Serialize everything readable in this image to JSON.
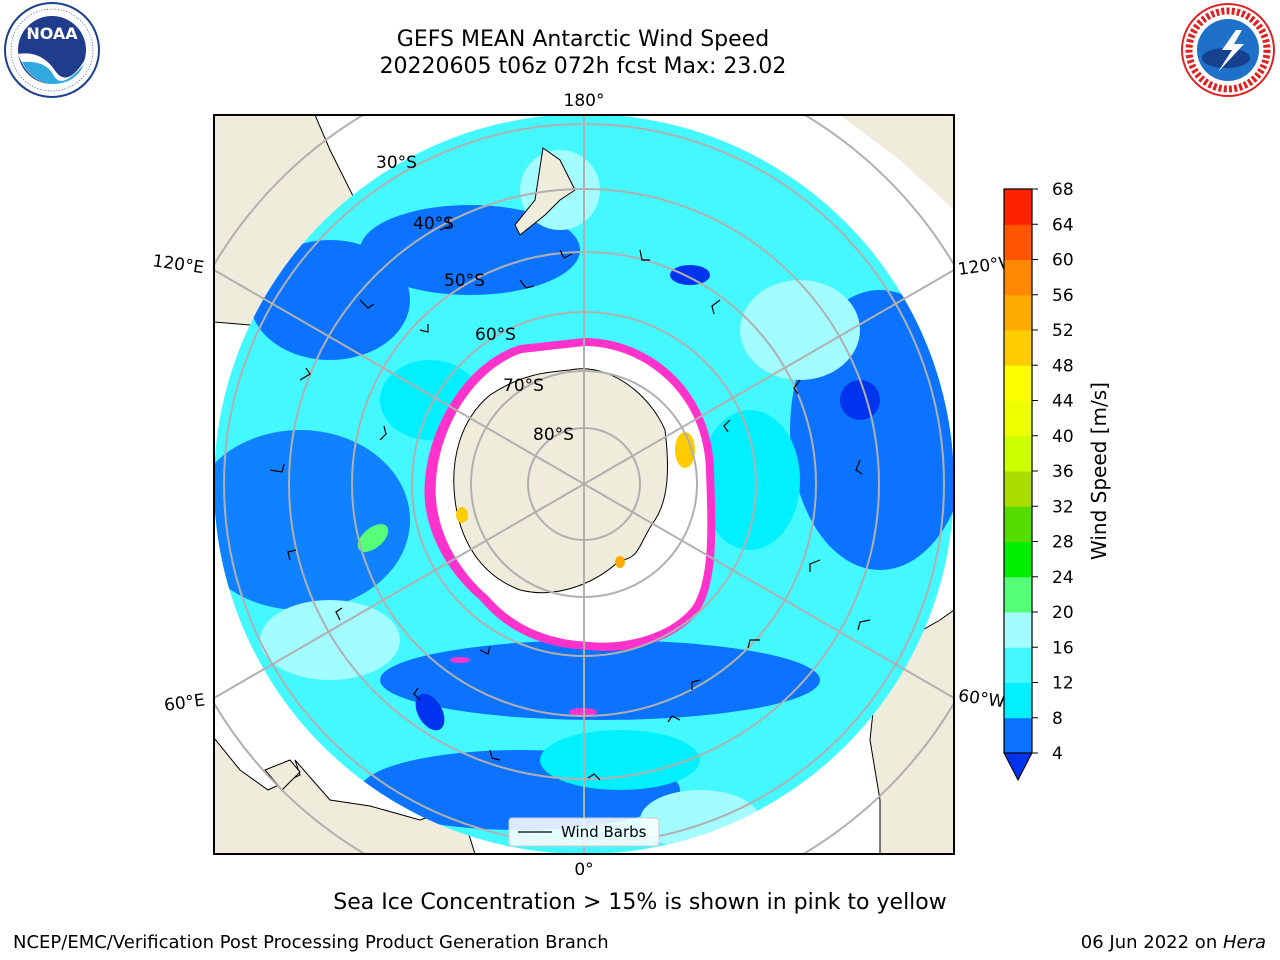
{
  "header": {
    "title_line1": "GEFS MEAN Antarctic Wind Speed",
    "title_line2": "20220605 t06z 072h fcst   Max: 23.02"
  },
  "logos": {
    "noaa": {
      "text": "NOAA",
      "ring_text": "NATIONAL OCEANIC AND ATMOSPHERIC ADMINISTRATION · U.S. DEPARTMENT OF COMMERCE"
    },
    "nws": {
      "ring_text": "NATIONAL WEATHER SERVICE"
    }
  },
  "map": {
    "longitude_labels": {
      "top": "180°",
      "bottom": "0°",
      "upper_left": "120°E",
      "upper_right": "120°W",
      "lower_left": "60°E",
      "lower_right": "60°W"
    },
    "latitude_labels": [
      "30°S",
      "40°S",
      "50°S",
      "60°S",
      "70°S",
      "80°S"
    ],
    "legend": {
      "label": "Wind Barbs"
    },
    "colors": {
      "land": "#efecdc",
      "ocean_4_8": "#0b73ff",
      "ocean_8_12": "#00f0ff",
      "ocean_12_16": "#44f8ff",
      "ocean_16_20": "#a3fcff",
      "sea_ice_low": "#ff33cc",
      "sea_ice_high": "#ffcc00",
      "grid": "#b0b0b0"
    }
  },
  "colorbar": {
    "label": "Wind Speed [m/s]",
    "ticks": [
      "4",
      "8",
      "12",
      "16",
      "20",
      "24",
      "28",
      "32",
      "36",
      "40",
      "44",
      "48",
      "52",
      "56",
      "60",
      "64",
      "68"
    ],
    "colors": [
      "#0b73ff",
      "#00f0ff",
      "#44f8ff",
      "#a3fcff",
      "#55ff77",
      "#00ee00",
      "#55dd00",
      "#aadd00",
      "#ccff00",
      "#eeff00",
      "#ffff00",
      "#ffcc00",
      "#ffaa00",
      "#ff8800",
      "#ff5500",
      "#ff2200"
    ],
    "under_color": "#0033ee"
  },
  "notes": {
    "sea_ice": "Sea Ice Concentration > 15% is shown in pink to yellow"
  },
  "footer": {
    "left": "NCEP/EMC/Verification Post Processing Product Generation Branch",
    "date": "06 Jun 2022 on ",
    "machine": "Hera"
  }
}
